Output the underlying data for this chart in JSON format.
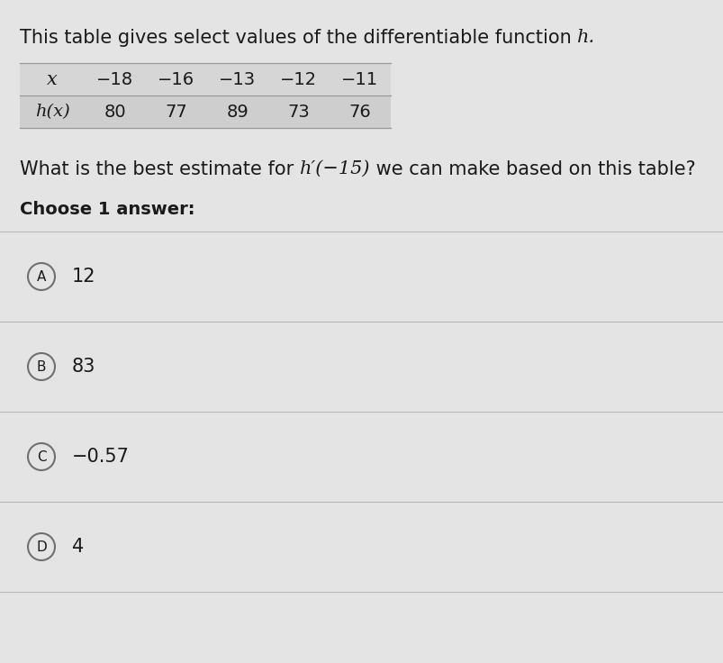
{
  "bg_color": "#e4e4e4",
  "text_color": "#1a1a1a",
  "sep_color": "#b8b8b8",
  "circle_edge_color": "#707070",
  "table_row1_bg": "#d6d6d6",
  "table_row2_bg": "#cecece",
  "table_border_color": "#999999",
  "title_normal": "This table gives select values of the differentiable function ",
  "title_italic_h": "h",
  "title_period": ".",
  "x_label": "x",
  "hx_label": "h(x)",
  "x_values": [
    "−18",
    "−16",
    "−13",
    "−12",
    "−11"
  ],
  "hx_values": [
    "80",
    "77",
    "89",
    "73",
    "76"
  ],
  "question_pre": "What is the best estimate for ",
  "question_math": "h′(−15)",
  "question_post": " we can make based on this table?",
  "choose_label": "Choose 1 answer:",
  "answers": [
    {
      "label": "A",
      "value": "12"
    },
    {
      "label": "B",
      "value": "83"
    },
    {
      "label": "C",
      "value": "−0.57"
    },
    {
      "label": "D",
      "value": "4"
    }
  ],
  "title_fontsize": 15,
  "table_fontsize": 14,
  "question_fontsize": 15,
  "choose_fontsize": 14,
  "answer_fontsize": 15,
  "fig_width": 8.04,
  "fig_height": 7.36,
  "dpi": 100
}
